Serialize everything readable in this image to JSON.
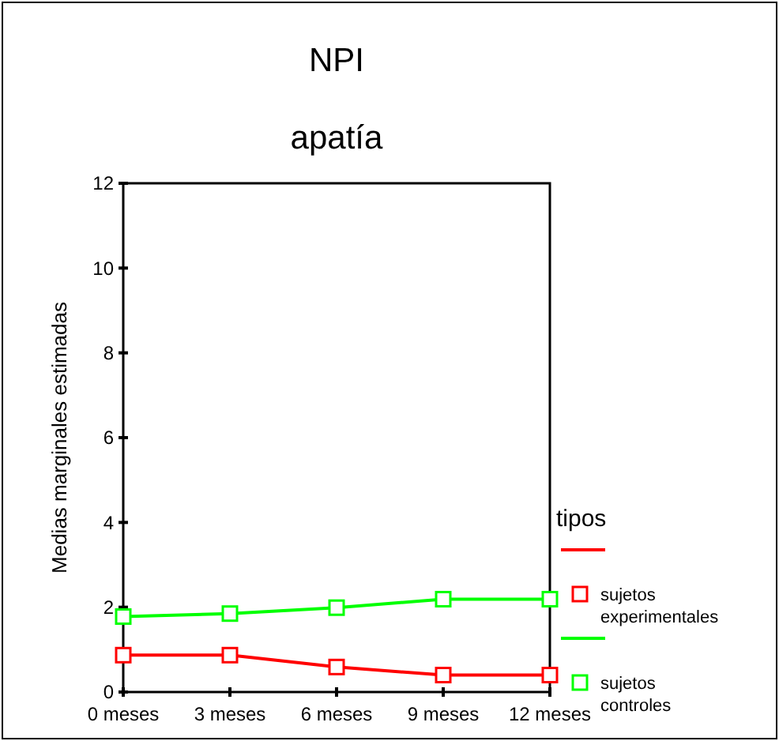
{
  "chart_data": {
    "type": "line",
    "title": "NPI",
    "subtitle": "apatía",
    "ylabel": "Medias marginales estimadas",
    "legend_title": "tipos",
    "categories": [
      "0 meses",
      "3 meses",
      "6 meses",
      "9 meses",
      "12 meses"
    ],
    "ylim": [
      0,
      12
    ],
    "yticks": [
      0,
      2,
      4,
      6,
      8,
      10,
      12
    ],
    "marker": "square",
    "legend": "right",
    "grid": false,
    "series": [
      {
        "name": "sujetos experimentales",
        "color": "#ff0000",
        "values": [
          0.87,
          0.87,
          0.59,
          0.4,
          0.4
        ]
      },
      {
        "name": "sujetos controles",
        "color": "#00ff00",
        "values": [
          1.78,
          1.85,
          1.99,
          2.19,
          2.19
        ]
      }
    ]
  }
}
